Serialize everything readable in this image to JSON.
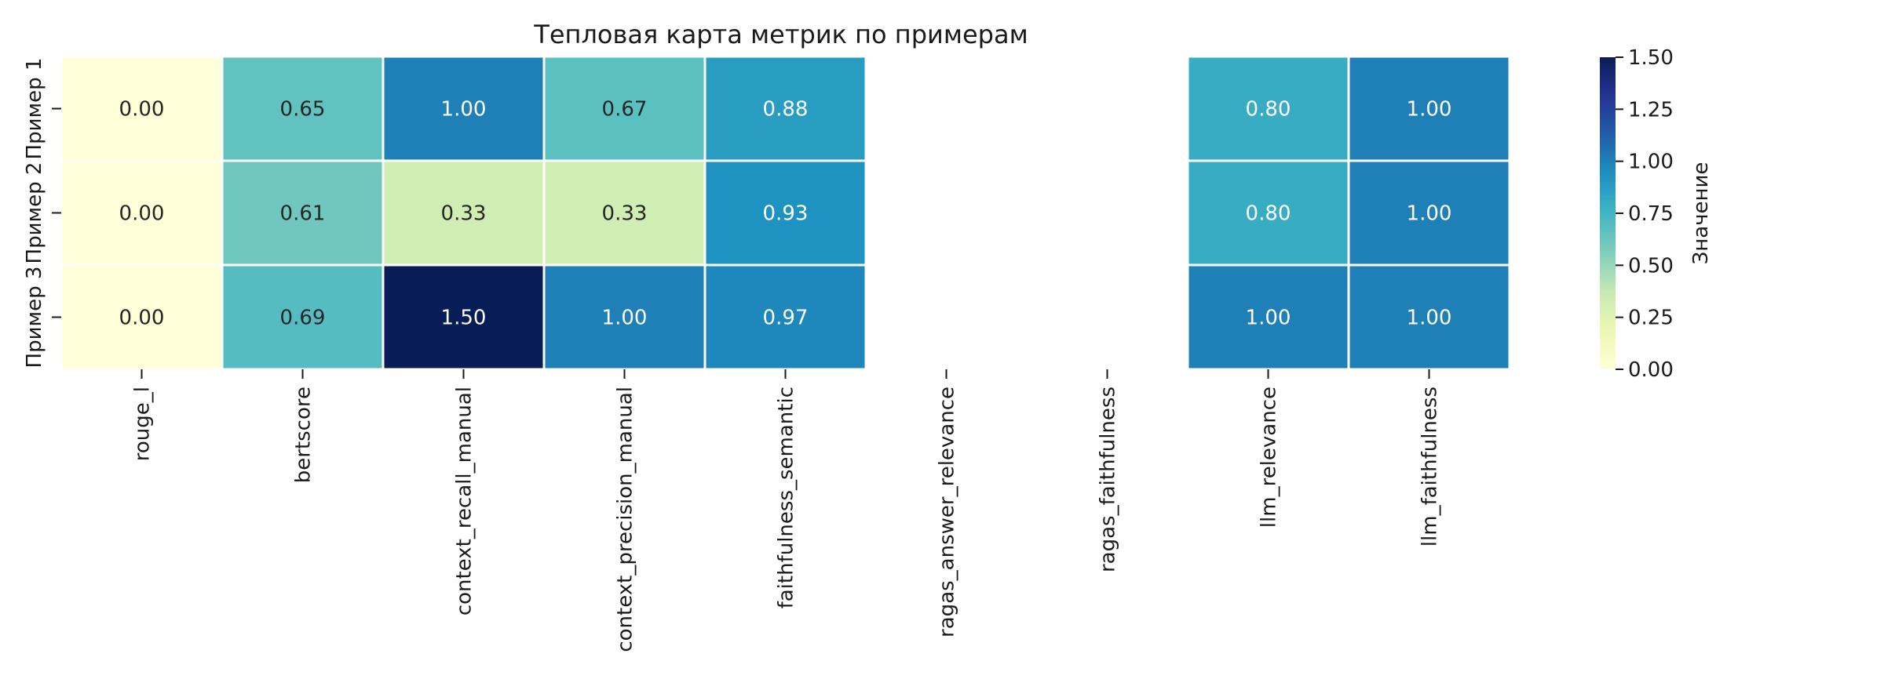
{
  "chart_data": {
    "type": "heatmap",
    "title": "Тепловая карта метрик по примерам",
    "x_categories": [
      "rouge_l",
      "bertscore",
      "context_recall_manual",
      "context_precision_manual",
      "faithfulness_semantic",
      "ragas_answer_relevance",
      "ragas_faithfulness",
      "llm_relevance",
      "llm_faithfulness"
    ],
    "y_categories": [
      "Пример 1",
      "Пример 2",
      "Пример 3"
    ],
    "values": [
      [
        0.0,
        0.65,
        1.0,
        0.67,
        0.88,
        null,
        null,
        0.8,
        1.0
      ],
      [
        0.0,
        0.61,
        0.33,
        0.33,
        0.93,
        null,
        null,
        0.8,
        1.0
      ],
      [
        0.0,
        0.69,
        1.5,
        1.0,
        0.97,
        null,
        null,
        1.0,
        1.0
      ]
    ],
    "value_format": "0.00",
    "colormap": "YlGnBu",
    "vmin": 0.0,
    "vmax": 1.5,
    "colorbar": {
      "label": "Значение",
      "ticks": [
        "0.00",
        "0.25",
        "0.50",
        "0.75",
        "1.00",
        "1.25",
        "1.50"
      ]
    }
  }
}
